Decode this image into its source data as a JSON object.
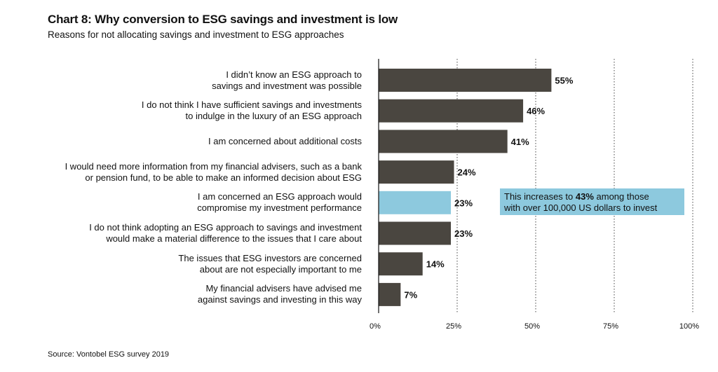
{
  "title": "Chart 8: Why conversion to ESG savings and investment is low",
  "subtitle": "Reasons for not allocating savings and investment to ESG approaches",
  "source": "Source: Vontobel ESG survey 2019",
  "colors": {
    "bar": "#4a4640",
    "highlight": "#8dc9de",
    "axis": "#111111",
    "grid": "#444444"
  },
  "callout": {
    "pre": "This increases to ",
    "bold": "43%",
    "post": " among those",
    "line2": "with over 100,000 US dollars to invest"
  },
  "chart_data": {
    "type": "bar",
    "orientation": "horizontal",
    "categories": [
      [
        "I didn’t know an ESG approach to",
        "savings and investment was possible"
      ],
      [
        "I do not think I have sufficient savings and investments",
        "to indulge in the luxury of an ESG approach"
      ],
      [
        "I am concerned about additional costs"
      ],
      [
        "I would need more information from my financial advisers, such as a bank",
        "or pension fund, to be able to make an informed decision about ESG"
      ],
      [
        "I am concerned an ESG approach would",
        "compromise my investment performance"
      ],
      [
        "I do not think adopting an ESG approach to savings and investment",
        "would make a material difference to the issues that I care about"
      ],
      [
        "The issues that ESG investors are concerned",
        "about are not especially important to me"
      ],
      [
        "My financial advisers have advised me",
        "against savings and investing in this way"
      ]
    ],
    "values": [
      55,
      46,
      41,
      24,
      23,
      23,
      14,
      7
    ],
    "value_labels": [
      "55%",
      "46%",
      "41%",
      "24%",
      "23%",
      "23%",
      "14%",
      "7%"
    ],
    "highlight_index": 4,
    "xlim": [
      0,
      100
    ],
    "xticks": [
      0,
      25,
      50,
      75,
      100
    ],
    "xtick_labels": [
      "0%",
      "25%",
      "50%",
      "75%",
      "100%"
    ],
    "grid": "dotted vertical"
  }
}
